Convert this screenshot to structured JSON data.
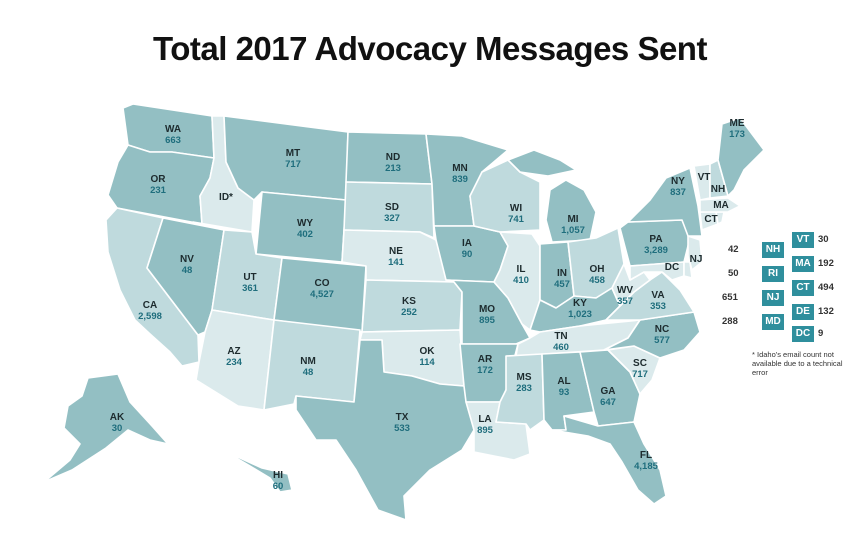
{
  "title": "Total 2017 Advocacy Messages Sent",
  "colors": {
    "light": "#dbeaec",
    "mid_light": "#bfdadd",
    "mid": "#a3cace",
    "dark": "#93bfc3",
    "box": "#2f8f9d",
    "value_text": "#1f6e7d"
  },
  "states": {
    "WA": {
      "label": "WA",
      "value": "663"
    },
    "OR": {
      "label": "OR",
      "value": "231"
    },
    "CA": {
      "label": "CA",
      "value": "2,598"
    },
    "ID": {
      "label": "ID*",
      "value": ""
    },
    "NV": {
      "label": "NV",
      "value": "48"
    },
    "MT": {
      "label": "MT",
      "value": "717"
    },
    "WY": {
      "label": "WY",
      "value": "402"
    },
    "UT": {
      "label": "UT",
      "value": "361"
    },
    "AZ": {
      "label": "AZ",
      "value": "234"
    },
    "CO": {
      "label": "CO",
      "value": "4,527"
    },
    "NM": {
      "label": "NM",
      "value": "48"
    },
    "ND": {
      "label": "ND",
      "value": "213"
    },
    "SD": {
      "label": "SD",
      "value": "327"
    },
    "NE": {
      "label": "NE",
      "value": "141"
    },
    "KS": {
      "label": "KS",
      "value": "252"
    },
    "OK": {
      "label": "OK",
      "value": "114"
    },
    "TX": {
      "label": "TX",
      "value": "533"
    },
    "MN": {
      "label": "MN",
      "value": "839"
    },
    "IA": {
      "label": "IA",
      "value": "90"
    },
    "MO": {
      "label": "MO",
      "value": "895"
    },
    "AR": {
      "label": "AR",
      "value": "172"
    },
    "LA": {
      "label": "LA",
      "value": "895"
    },
    "WI": {
      "label": "WI",
      "value": "741"
    },
    "IL": {
      "label": "IL",
      "value": "410"
    },
    "MI": {
      "label": "MI",
      "value": "1,057"
    },
    "IN": {
      "label": "IN",
      "value": "457"
    },
    "OH": {
      "label": "OH",
      "value": "458"
    },
    "KY": {
      "label": "KY",
      "value": "1,023"
    },
    "TN": {
      "label": "TN",
      "value": "460"
    },
    "MS": {
      "label": "MS",
      "value": "283"
    },
    "AL": {
      "label": "AL",
      "value": "93"
    },
    "GA": {
      "label": "GA",
      "value": "647"
    },
    "FL": {
      "label": "FL",
      "value": "4,185"
    },
    "SC": {
      "label": "SC",
      "value": "717"
    },
    "NC": {
      "label": "NC",
      "value": "577"
    },
    "VA": {
      "label": "VA",
      "value": "353"
    },
    "WV": {
      "label": "WV",
      "value": "357"
    },
    "PA": {
      "label": "PA",
      "value": "3,289"
    },
    "NY": {
      "label": "NY",
      "value": "837"
    },
    "ME": {
      "label": "ME",
      "value": "173"
    },
    "VT": {
      "label": "VT",
      "value": ""
    },
    "NH": {
      "label": "NH",
      "value": ""
    },
    "MA": {
      "label": "MA",
      "value": ""
    },
    "CT": {
      "label": "CT",
      "value": ""
    },
    "NJ": {
      "label": "NJ",
      "value": ""
    },
    "DC": {
      "label": "DC",
      "value": ""
    },
    "AK": {
      "label": "AK",
      "value": "30"
    },
    "HI": {
      "label": "HI",
      "value": "60"
    }
  },
  "legend_left": [
    {
      "value": "42",
      "label": "NH"
    },
    {
      "value": "50",
      "label": "RI"
    },
    {
      "value": "651",
      "label": "NJ"
    },
    {
      "value": "288",
      "label": "MD"
    }
  ],
  "legend_right": [
    {
      "label": "VT",
      "value": "30"
    },
    {
      "label": "MA",
      "value": "192"
    },
    {
      "label": "CT",
      "value": "494"
    },
    {
      "label": "DE",
      "value": "132"
    },
    {
      "label": "DC",
      "value": "9"
    }
  ],
  "footnote": "* Idaho's email count not available due to a technical error"
}
